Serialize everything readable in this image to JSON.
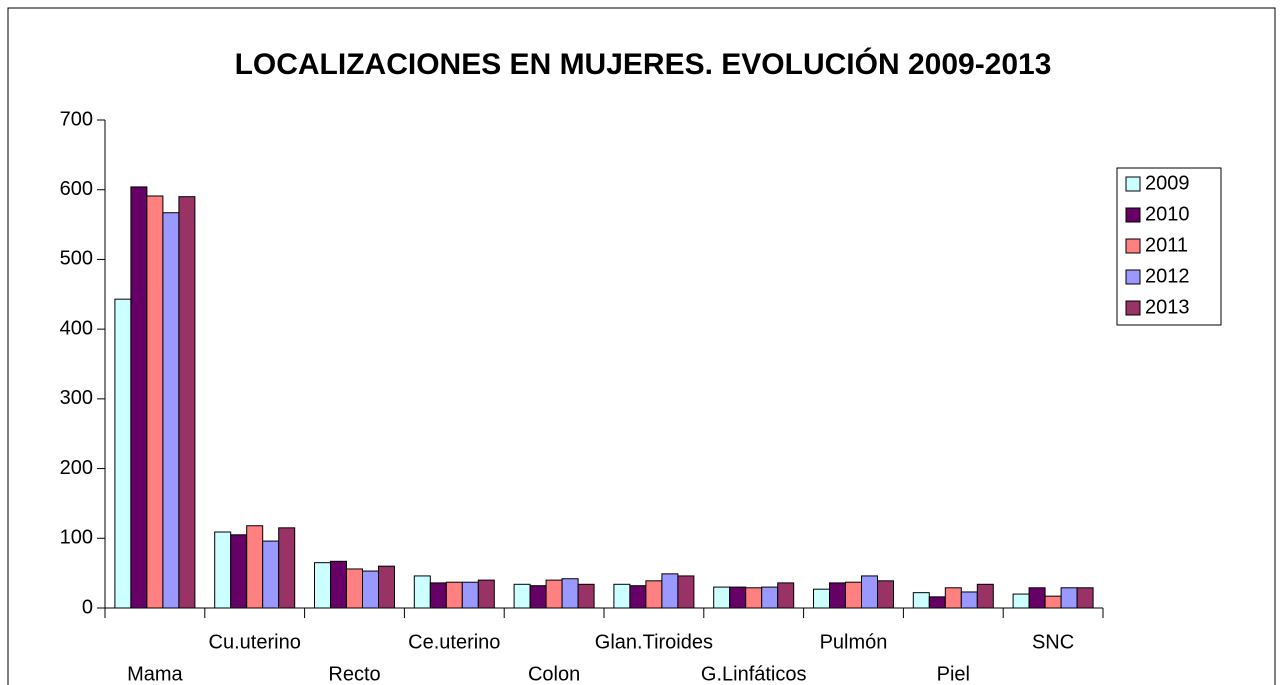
{
  "chart_data": {
    "type": "bar",
    "title": "LOCALIZACIONES EN MUJERES. EVOLUCIÓN 2009-2013",
    "categories": [
      "Mama",
      "Cu.uterino",
      "Recto",
      "Ce.uterino",
      "Colon",
      "Glan.Tiroides",
      "G.Linfáticos",
      "Pulmón",
      "Piel",
      "SNC"
    ],
    "series": [
      {
        "name": "2009",
        "color": "#ccffff",
        "values": [
          443,
          109,
          65,
          46,
          34,
          34,
          30,
          27,
          22,
          20
        ]
      },
      {
        "name": "2010",
        "color": "#660066",
        "values": [
          604,
          105,
          67,
          36,
          32,
          32,
          30,
          36,
          16,
          29
        ]
      },
      {
        "name": "2011",
        "color": "#ff8080",
        "values": [
          591,
          118,
          56,
          37,
          40,
          39,
          29,
          37,
          29,
          17
        ]
      },
      {
        "name": "2012",
        "color": "#9999ff",
        "values": [
          567,
          96,
          53,
          37,
          42,
          49,
          30,
          46,
          23,
          29
        ]
      },
      {
        "name": "2013",
        "color": "#993366",
        "values": [
          590,
          115,
          60,
          40,
          34,
          46,
          36,
          39,
          34,
          29
        ]
      }
    ],
    "ylim": [
      0,
      700
    ],
    "yticks": [
      0,
      100,
      200,
      300,
      400,
      500,
      600,
      700
    ],
    "grid": false,
    "legend": "right"
  }
}
